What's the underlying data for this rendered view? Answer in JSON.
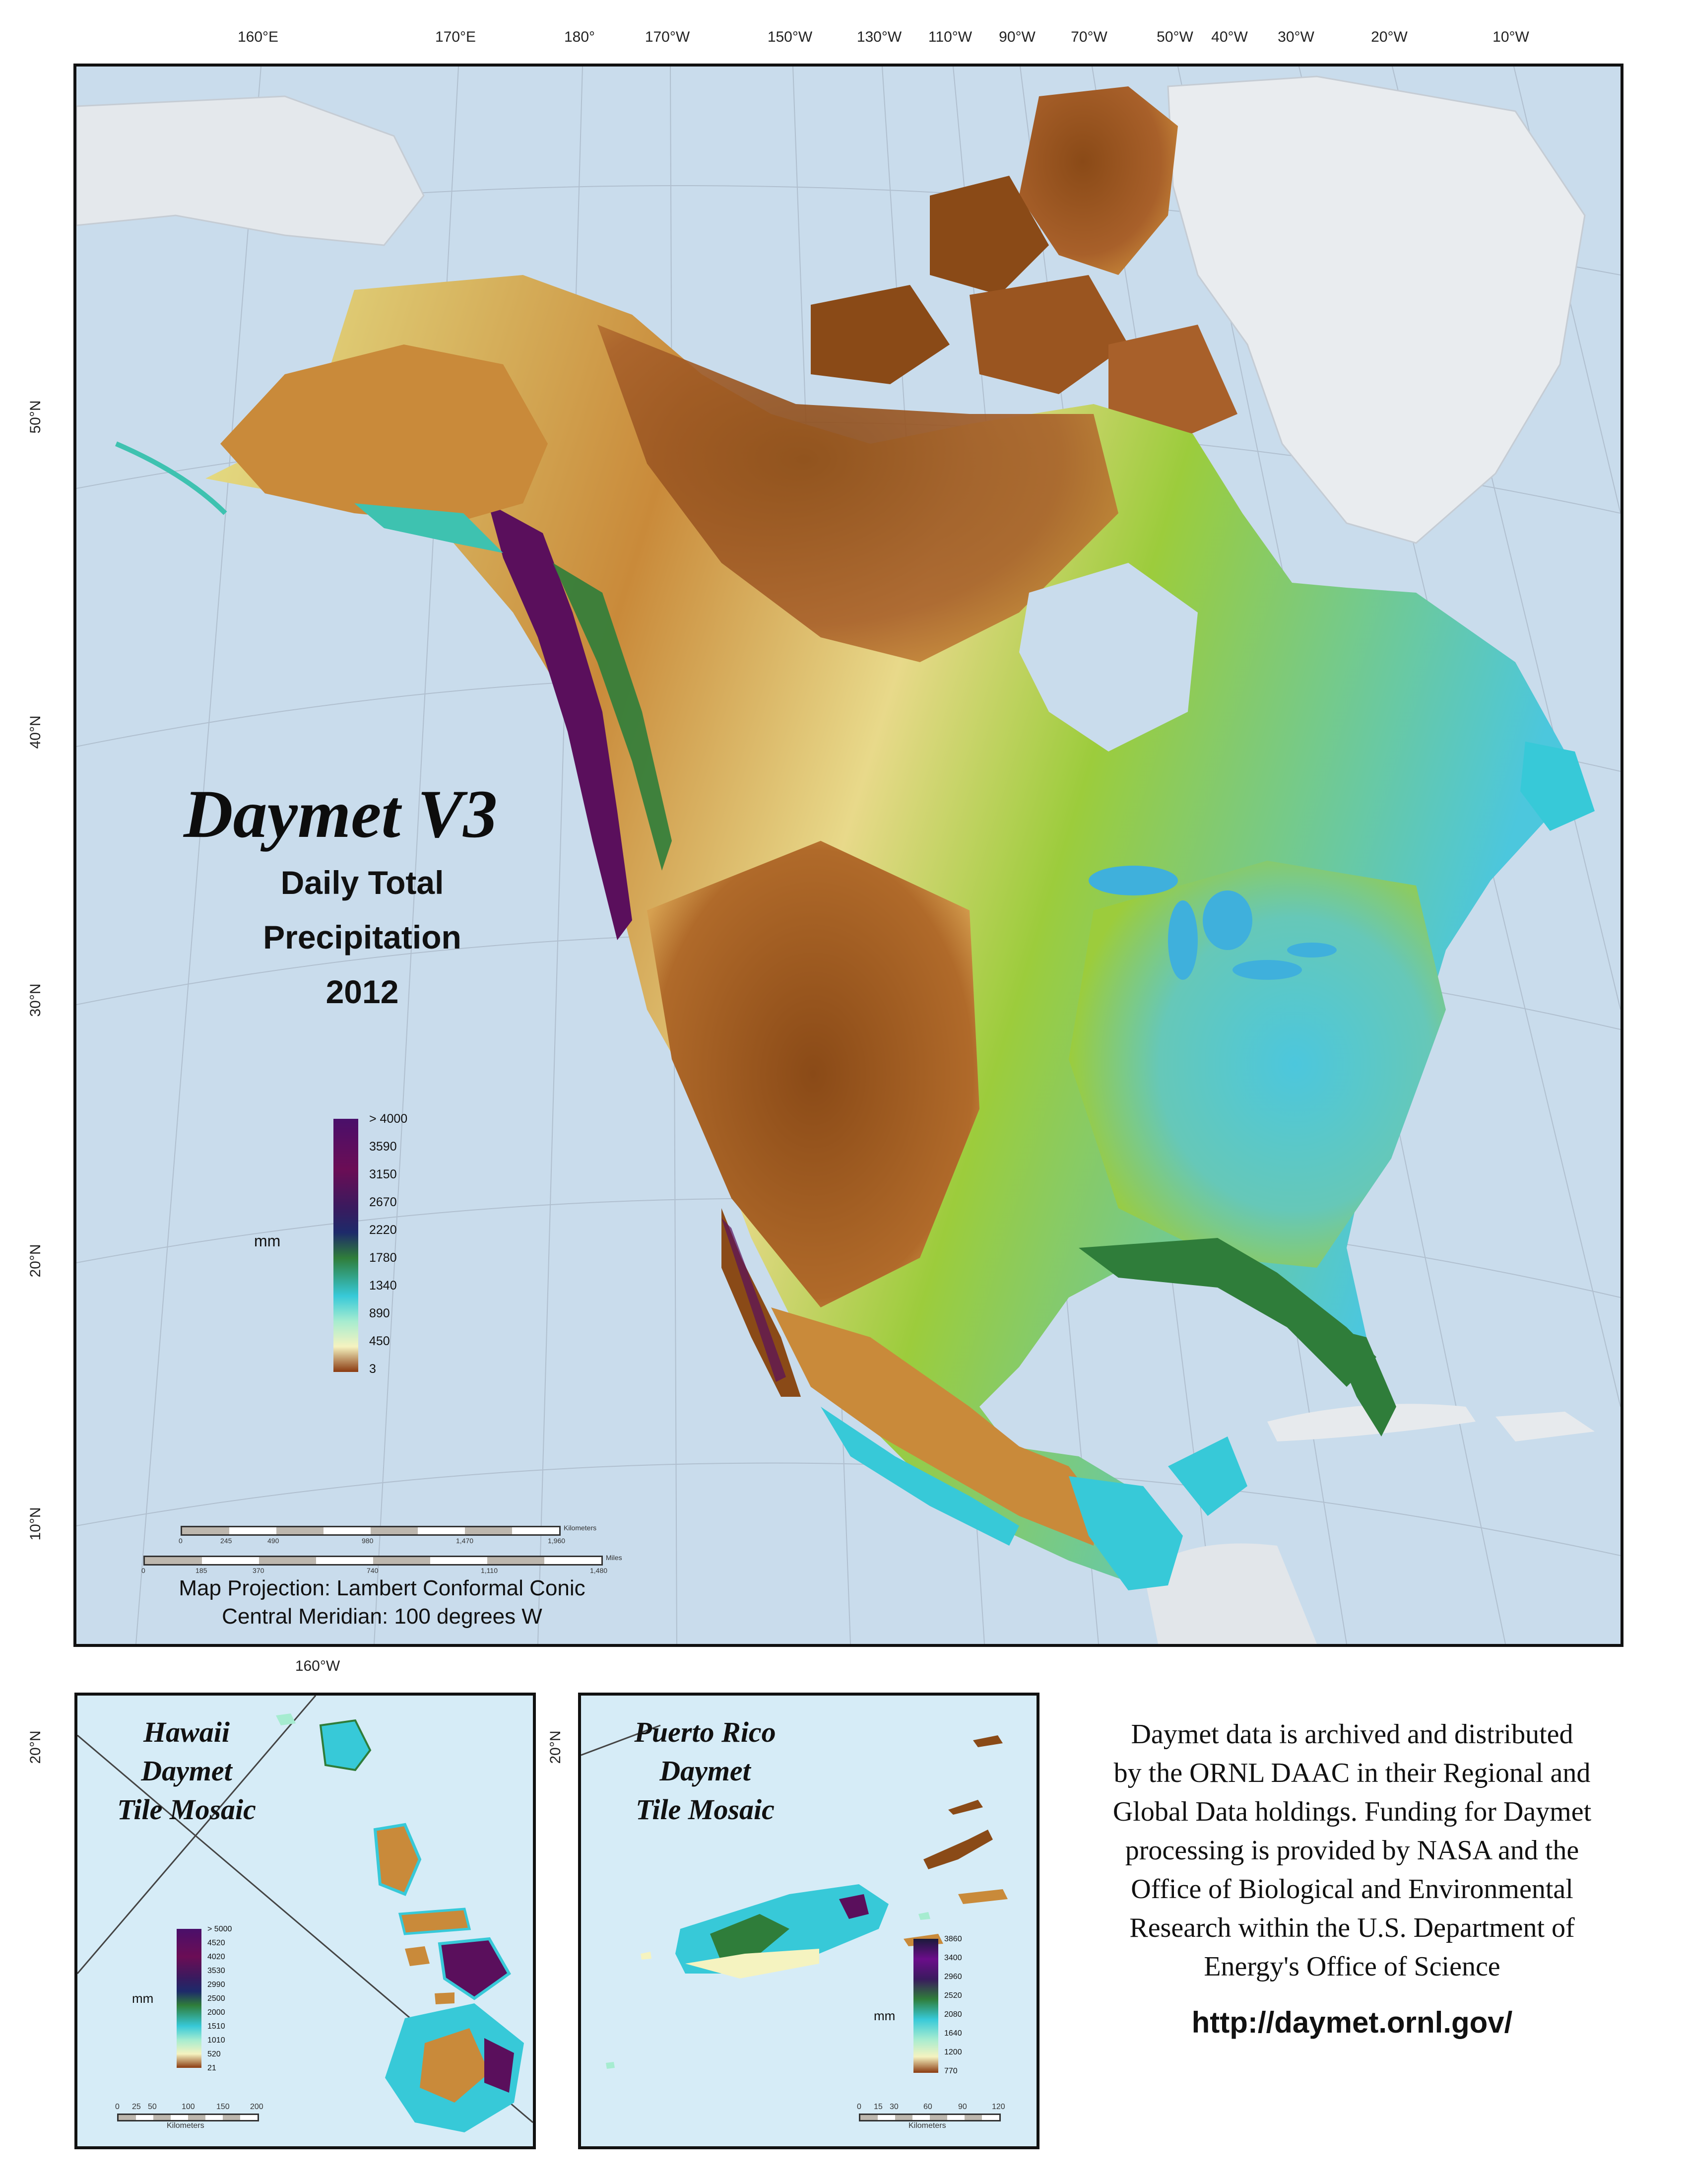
{
  "map": {
    "title": "Daymet V3",
    "subtitle_lines": [
      "Daily Total",
      "Precipitation",
      "2012"
    ],
    "lon_ticks": [
      "160°E",
      "170°E",
      "180°",
      "170°W",
      "150°W",
      "130°W",
      "110°W",
      "90°W",
      "70°W",
      "50°W",
      "40°W",
      "30°W",
      "20°W",
      "10°W"
    ],
    "lat_ticks": [
      "50°N",
      "40°N",
      "30°N",
      "20°N",
      "10°N"
    ],
    "legend": {
      "unit": "mm",
      "labels": [
        "> 4000",
        "3590",
        "3150",
        "2670",
        "2220",
        "1780",
        "1340",
        "890",
        "450",
        "3"
      ]
    },
    "scale": {
      "km_unit": "Kilometers",
      "km_ticks": [
        "0",
        "245",
        "490",
        "980",
        "1,470",
        "1,960"
      ],
      "mi_unit": "Miles",
      "mi_ticks": [
        "0",
        "185",
        "370",
        "740",
        "1,110",
        "1,480"
      ]
    },
    "projection_lines": [
      "Map Projection:  Lambert Conformal Conic",
      "Central Meridian: 100 degrees W"
    ]
  },
  "hawaii": {
    "title_lines": [
      "Hawaii",
      "Daymet",
      "Tile Mosaic"
    ],
    "lon_tick": "160°W",
    "lat_tick": "20°N",
    "legend": {
      "unit": "mm",
      "labels": [
        "> 5000",
        "4520",
        "4020",
        "3530",
        "2990",
        "2500",
        "2000",
        "1510",
        "1010",
        "520",
        "21"
      ]
    },
    "scale": {
      "ticks": [
        "0",
        "25",
        "50",
        "100",
        "150",
        "200"
      ],
      "unit": "Kilometers"
    }
  },
  "puerto_rico": {
    "title_lines": [
      "Puerto Rico",
      "Daymet",
      "Tile Mosaic"
    ],
    "lat_tick": "20°N",
    "legend": {
      "unit": "mm",
      "labels": [
        "3860",
        "3400",
        "2960",
        "2520",
        "2080",
        "1640",
        "1200",
        "770"
      ]
    },
    "scale": {
      "ticks": [
        "0",
        "15",
        "30",
        "60",
        "90",
        "120"
      ],
      "unit": "Kilometers"
    }
  },
  "credit_lines": [
    "Daymet data is archived and distributed",
    "by the ORNL DAAC in their Regional and",
    "Global Data holdings.  Funding for Daymet",
    "processing is provided by NASA and the",
    "Office of Biological and Environmental",
    "Research within the U.S. Department of",
    "Energy's Office of Science"
  ],
  "url": "http://daymet.ornl.gov/",
  "colors": {
    "ocean": "#c9dcec",
    "ocean_inset": "#d6ecf7",
    "dry": "#8a4a17",
    "semi_arid": "#c98a3a",
    "moderate": "#e7e48a",
    "green": "#9ccc3c",
    "wet": "#4cc7dd",
    "very_wet": "#2f7d3a",
    "extreme": "#5a0f5c"
  }
}
